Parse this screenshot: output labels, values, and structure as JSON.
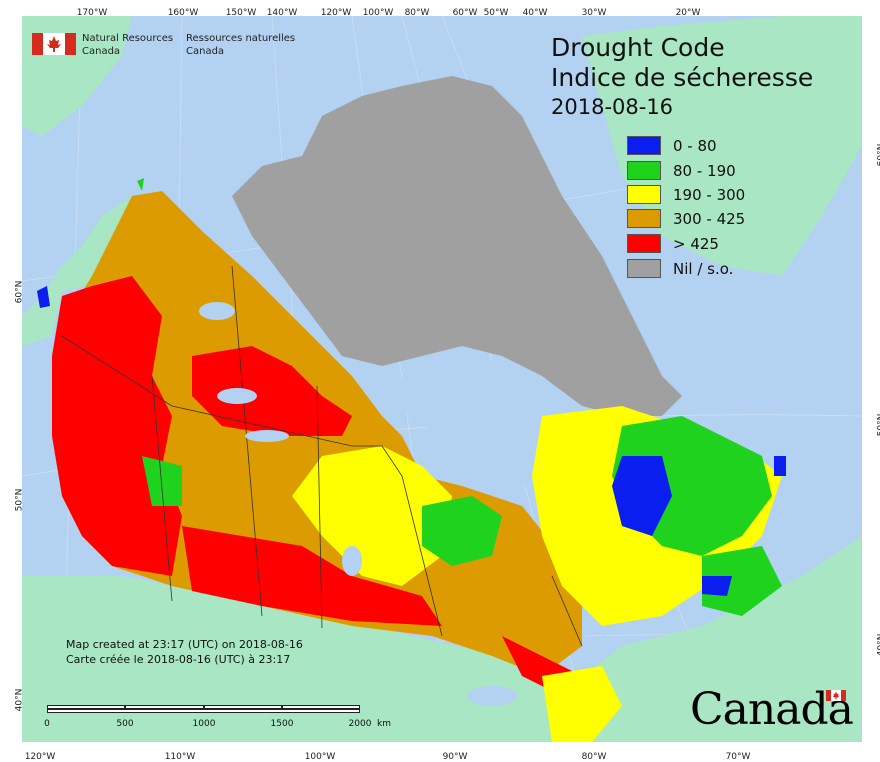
{
  "agency": {
    "name_en_line1": "Natural Resources",
    "name_en_line2": "Canada",
    "name_fr_line1": "Ressources naturelles",
    "name_fr_line2": "Canada"
  },
  "title": {
    "en": "Drought Code",
    "fr": "Indice de sécheresse",
    "date": "2018-08-16"
  },
  "legend": [
    {
      "label": "0 - 80",
      "color": "#0a1ef0"
    },
    {
      "label": "80 - 190",
      "color": "#1ed21e"
    },
    {
      "label": "190 - 300",
      "color": "#ffff00"
    },
    {
      "label": "300 - 425",
      "color": "#dc9b00"
    },
    {
      "label": "> 425",
      "color": "#ff0000"
    },
    {
      "label": "Nil / s.o.",
      "color": "#a0a0a0"
    }
  ],
  "colors": {
    "ocean": "#b3d1f0",
    "foreign_land": "#a8e6c4",
    "canada_flag_red": "#d52b1e"
  },
  "ticks": {
    "top": [
      "170°W",
      "160°W",
      "150°W",
      "140°W",
      "120°W",
      "100°W",
      "80°W",
      "60°W",
      "50°W",
      "40°W",
      "30°W",
      "20°W"
    ],
    "bottom": [
      "120°W",
      "110°W",
      "100°W",
      "90°W",
      "80°W",
      "70°W"
    ],
    "left": [
      "60°N",
      "50°N",
      "40°N"
    ],
    "right": [
      "60°N",
      "50°N",
      "40°N"
    ]
  },
  "notes": {
    "created_en": "Map created at 23:17 (UTC) on 2018-08-16",
    "created_fr": "Carte créée le 2018-08-16 (UTC) à 23:17"
  },
  "scale_bar": {
    "labels": [
      "0",
      "500",
      "1000",
      "1500",
      "2000",
      "km"
    ]
  },
  "wordmark": "Canada"
}
